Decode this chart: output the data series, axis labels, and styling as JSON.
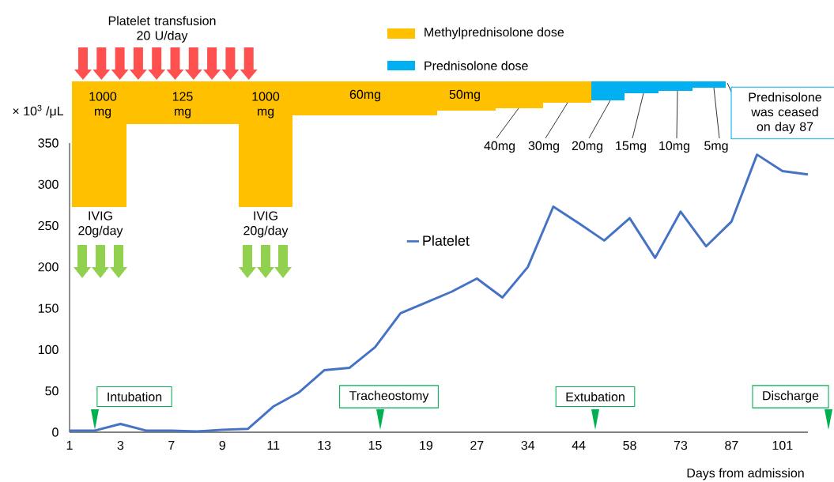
{
  "chart_data": {
    "type": "line",
    "categories": [
      "1",
      null,
      "3",
      null,
      "7",
      null,
      "9",
      null,
      "11",
      null,
      "13",
      null,
      "15",
      null,
      "19",
      null,
      "27",
      null,
      "34",
      null,
      "44",
      null,
      "58",
      null,
      "73",
      null,
      "87",
      null,
      "101",
      null
    ],
    "series": [
      {
        "name": "Platelet",
        "color": "#4472c4",
        "values": [
          2,
          2,
          10,
          2,
          2,
          1,
          3,
          4,
          31,
          48,
          75,
          78,
          103,
          144,
          157,
          170,
          186,
          163,
          200,
          273,
          253,
          232,
          259,
          211,
          267,
          225,
          255,
          336,
          316,
          312
        ]
      }
    ],
    "ylim": [
      0,
      350
    ],
    "yticks": [
      0,
      50,
      100,
      150,
      200,
      250,
      300,
      350
    ],
    "xlabel": "Days from admission",
    "ylabel": "× 10$^{3}$ /μL",
    "legend": "top",
    "annotations": [
      "Platelet transfusion 20 U/day",
      "Methylprednisolone dose",
      "Prednisolone dose",
      "1000 mg",
      "125 mg",
      "1000 mg",
      "60mg",
      "50mg",
      "40mg",
      "30mg",
      "20mg",
      "15mg",
      "10mg",
      "5mg",
      "Prednisolone was ceased on day 87",
      "IVIG 20g/day",
      "IVIG 20g/day",
      "Intubation",
      "Tracheostomy",
      "Extubation",
      "Discharge"
    ]
  }
}
